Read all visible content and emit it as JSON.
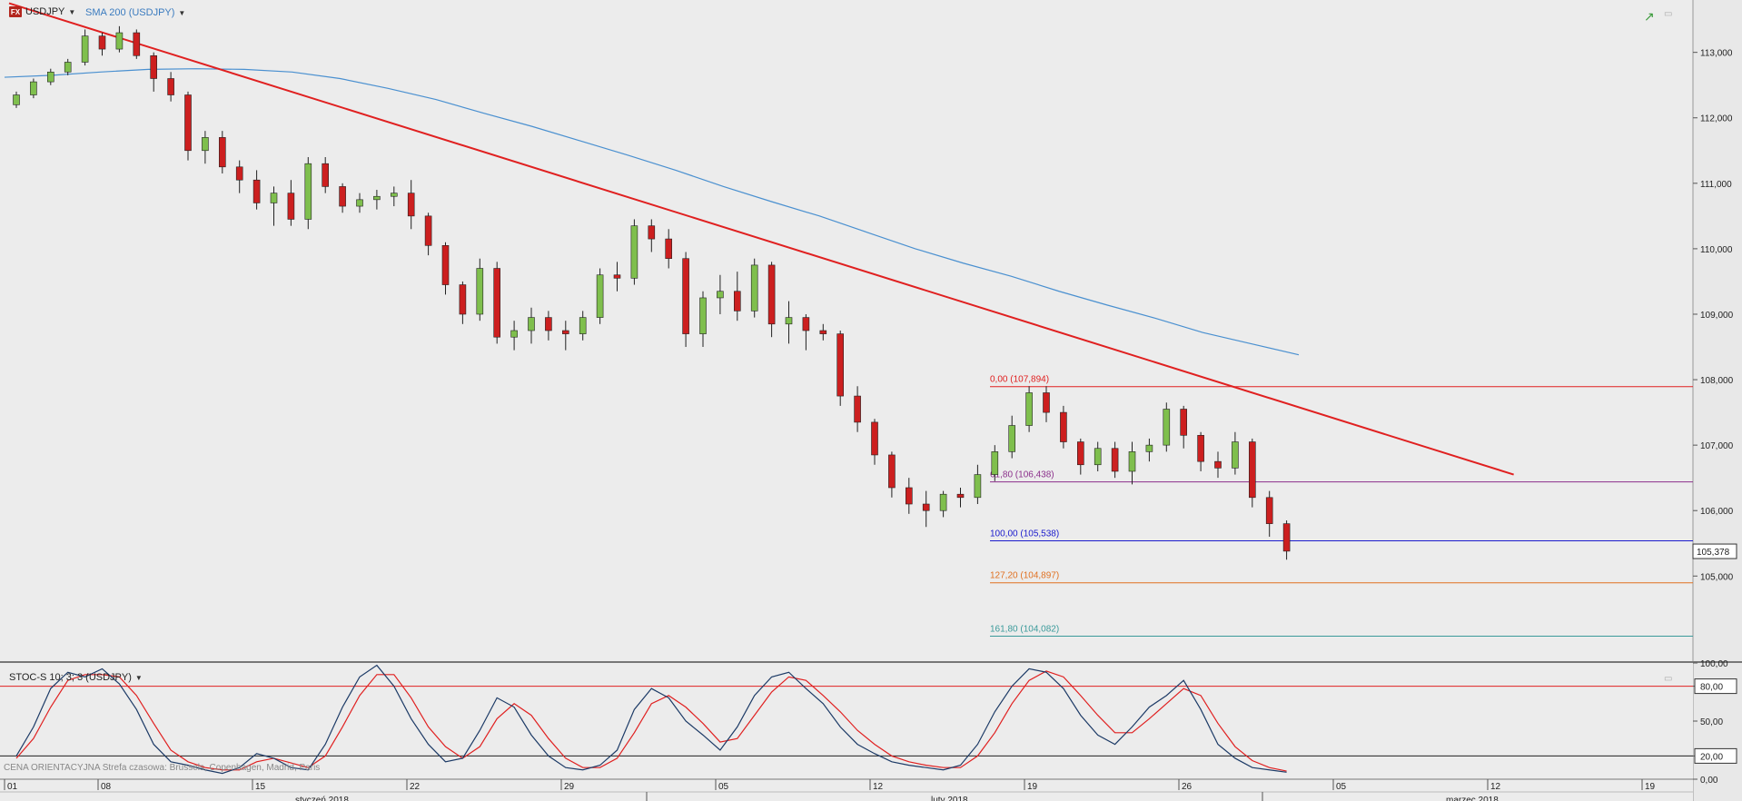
{
  "window": {
    "symbol": "USDJPY",
    "logo": "FX",
    "indicator": "SMA 200 (USDJPY)",
    "stoch_label": "STOC-S 10; 3; 3 (USDJPY)",
    "footer": "CENA ORIENTACYJNA   Strefa czasowa: Brussels, Copenhagen, Madrid, Paris"
  },
  "colors": {
    "bull": "#7fbf4d",
    "bear": "#cc1f1f",
    "sma": "#4a90d0",
    "trend": "#e02020",
    "stochK": "#1c3a66",
    "stochD": "#e02020"
  },
  "chart_data": {
    "type": "candlestick",
    "symbol": "USDJPY",
    "ylim": [
      103.7,
      113.8
    ],
    "y_ticks": [
      "113,000",
      "112,000",
      "111,000",
      "110,000",
      "109,000",
      "108,000",
      "107,000",
      "106,000",
      "105,000"
    ],
    "last_price": "105,378",
    "x_day_labels": [
      "01",
      "08",
      "15",
      "22",
      "29",
      "05",
      "12",
      "19",
      "26",
      "05",
      "12",
      "19"
    ],
    "x_month_labels": [
      "styczeń 2018",
      "luty 2018",
      "marzec 2018"
    ],
    "fib_levels": [
      {
        "label": "0,00 (107,894)",
        "value": 107.894,
        "color": "#e02020"
      },
      {
        "label": "61,80 (106,438)",
        "value": 106.438,
        "color": "#8b2f8b"
      },
      {
        "label": "100,00 (105,538)",
        "value": 105.538,
        "color": "#1a1acc"
      },
      {
        "label": "127,20 (104,897)",
        "value": 104.897,
        "color": "#e07020"
      },
      {
        "label": "161,80 (104,082)",
        "value": 104.082,
        "color": "#3a9a9a"
      }
    ],
    "trendline": [
      {
        "date_index": 0,
        "value": 113.75
      },
      {
        "date_index": 48.5,
        "value": 106.55
      }
    ],
    "sma200": [
      112.62,
      112.65,
      112.7,
      112.74,
      112.75,
      112.74,
      112.7,
      112.6,
      112.45,
      112.28,
      112.07,
      111.87,
      111.65,
      111.43,
      111.2,
      110.95,
      110.72,
      110.5,
      110.25,
      110.0,
      109.78,
      109.58,
      109.35,
      109.14,
      108.94,
      108.72,
      108.55,
      108.38
    ],
    "ohlc": [
      [
        112.2,
        112.4,
        112.15,
        112.35
      ],
      [
        112.35,
        112.6,
        112.3,
        112.55
      ],
      [
        112.55,
        112.75,
        112.5,
        112.7
      ],
      [
        112.7,
        112.9,
        112.65,
        112.85
      ],
      [
        112.85,
        113.35,
        112.8,
        113.25
      ],
      [
        113.25,
        113.3,
        112.95,
        113.05
      ],
      [
        113.05,
        113.4,
        113.0,
        113.3
      ],
      [
        113.3,
        113.35,
        112.9,
        112.95
      ],
      [
        112.95,
        113.0,
        112.4,
        112.6
      ],
      [
        112.6,
        112.7,
        112.25,
        112.35
      ],
      [
        112.35,
        112.4,
        111.35,
        111.5
      ],
      [
        111.5,
        111.8,
        111.3,
        111.7
      ],
      [
        111.7,
        111.8,
        111.15,
        111.25
      ],
      [
        111.25,
        111.35,
        110.85,
        111.05
      ],
      [
        111.05,
        111.2,
        110.6,
        110.7
      ],
      [
        110.7,
        110.95,
        110.35,
        110.85
      ],
      [
        110.85,
        111.05,
        110.35,
        110.45
      ],
      [
        110.45,
        111.4,
        110.3,
        111.3
      ],
      [
        111.3,
        111.4,
        110.85,
        110.95
      ],
      [
        110.95,
        111.0,
        110.55,
        110.65
      ],
      [
        110.65,
        110.85,
        110.55,
        110.75
      ],
      [
        110.75,
        110.9,
        110.6,
        110.8
      ],
      [
        110.8,
        110.95,
        110.65,
        110.85
      ],
      [
        110.85,
        111.05,
        110.3,
        110.5
      ],
      [
        110.5,
        110.55,
        109.9,
        110.05
      ],
      [
        110.05,
        110.1,
        109.3,
        109.45
      ],
      [
        109.45,
        109.5,
        108.85,
        109.0
      ],
      [
        109.0,
        109.85,
        108.9,
        109.7
      ],
      [
        109.7,
        109.8,
        108.55,
        108.65
      ],
      [
        108.65,
        108.9,
        108.45,
        108.75
      ],
      [
        108.75,
        109.1,
        108.55,
        108.95
      ],
      [
        108.95,
        109.05,
        108.6,
        108.75
      ],
      [
        108.75,
        108.9,
        108.45,
        108.7
      ],
      [
        108.7,
        109.05,
        108.6,
        108.95
      ],
      [
        108.95,
        109.7,
        108.85,
        109.6
      ],
      [
        109.6,
        109.8,
        109.35,
        109.55
      ],
      [
        109.55,
        110.45,
        109.45,
        110.35
      ],
      [
        110.35,
        110.45,
        109.95,
        110.15
      ],
      [
        110.15,
        110.3,
        109.7,
        109.85
      ],
      [
        109.85,
        109.95,
        108.5,
        108.7
      ],
      [
        108.7,
        109.35,
        108.5,
        109.25
      ],
      [
        109.25,
        109.6,
        109.0,
        109.35
      ],
      [
        109.35,
        109.65,
        108.9,
        109.05
      ],
      [
        109.05,
        109.85,
        108.95,
        109.75
      ],
      [
        109.75,
        109.8,
        108.65,
        108.85
      ],
      [
        108.85,
        109.2,
        108.55,
        108.95
      ],
      [
        108.95,
        109.0,
        108.45,
        108.75
      ],
      [
        108.75,
        108.85,
        108.6,
        108.7
      ],
      [
        108.7,
        108.75,
        107.6,
        107.75
      ],
      [
        107.75,
        107.9,
        107.2,
        107.35
      ],
      [
        107.35,
        107.4,
        106.7,
        106.85
      ],
      [
        106.85,
        106.9,
        106.2,
        106.35
      ],
      [
        106.35,
        106.5,
        105.95,
        106.1
      ],
      [
        106.1,
        106.3,
        105.75,
        106.0
      ],
      [
        106.0,
        106.3,
        105.9,
        106.25
      ],
      [
        106.25,
        106.35,
        106.05,
        106.2
      ],
      [
        106.2,
        106.7,
        106.1,
        106.55
      ],
      [
        106.55,
        107.0,
        106.45,
        106.9
      ],
      [
        106.9,
        107.45,
        106.8,
        107.3
      ],
      [
        107.3,
        107.9,
        107.2,
        107.8
      ],
      [
        107.8,
        107.9,
        107.35,
        107.5
      ],
      [
        107.5,
        107.6,
        106.95,
        107.05
      ],
      [
        107.05,
        107.1,
        106.55,
        106.7
      ],
      [
        106.7,
        107.05,
        106.6,
        106.95
      ],
      [
        106.95,
        107.05,
        106.5,
        106.6
      ],
      [
        106.6,
        107.05,
        106.4,
        106.9
      ],
      [
        106.9,
        107.1,
        106.75,
        107.0
      ],
      [
        107.0,
        107.65,
        106.9,
        107.55
      ],
      [
        107.55,
        107.6,
        106.95,
        107.15
      ],
      [
        107.15,
        107.2,
        106.6,
        106.75
      ],
      [
        106.75,
        106.9,
        106.5,
        106.65
      ],
      [
        106.65,
        107.2,
        106.55,
        107.05
      ],
      [
        107.05,
        107.1,
        106.05,
        106.2
      ],
      [
        106.2,
        106.3,
        105.6,
        105.8
      ],
      [
        105.8,
        105.85,
        105.25,
        105.38
      ]
    ],
    "stochastic": {
      "ylim": [
        0,
        100
      ],
      "y_ticks": [
        "100,00",
        "80,00",
        "50,00",
        "20,00",
        "0,00"
      ],
      "levels": [
        80,
        20
      ],
      "k_label": "80,00",
      "d_label": "20,00",
      "k": [
        20,
        45,
        78,
        92,
        88,
        95,
        82,
        60,
        30,
        15,
        12,
        8,
        5,
        10,
        22,
        18,
        10,
        8,
        30,
        62,
        88,
        98,
        80,
        52,
        30,
        15,
        18,
        42,
        70,
        62,
        38,
        20,
        10,
        8,
        12,
        25,
        60,
        78,
        70,
        50,
        38,
        25,
        45,
        72,
        88,
        92,
        78,
        65,
        45,
        30,
        22,
        15,
        12,
        10,
        8,
        12,
        30,
        58,
        80,
        95,
        92,
        78,
        55,
        38,
        30,
        45,
        62,
        72,
        85,
        60,
        30,
        18,
        10,
        8,
        6
      ],
      "d": [
        18,
        35,
        62,
        85,
        90,
        90,
        88,
        72,
        48,
        25,
        15,
        10,
        8,
        8,
        15,
        18,
        14,
        10,
        20,
        45,
        72,
        90,
        90,
        70,
        45,
        28,
        18,
        28,
        52,
        65,
        55,
        35,
        18,
        10,
        10,
        18,
        40,
        65,
        72,
        62,
        48,
        32,
        35,
        55,
        75,
        88,
        85,
        72,
        58,
        42,
        30,
        20,
        15,
        12,
        10,
        10,
        20,
        40,
        65,
        85,
        93,
        88,
        72,
        55,
        40,
        40,
        52,
        65,
        78,
        72,
        48,
        28,
        16,
        10,
        7
      ]
    }
  }
}
